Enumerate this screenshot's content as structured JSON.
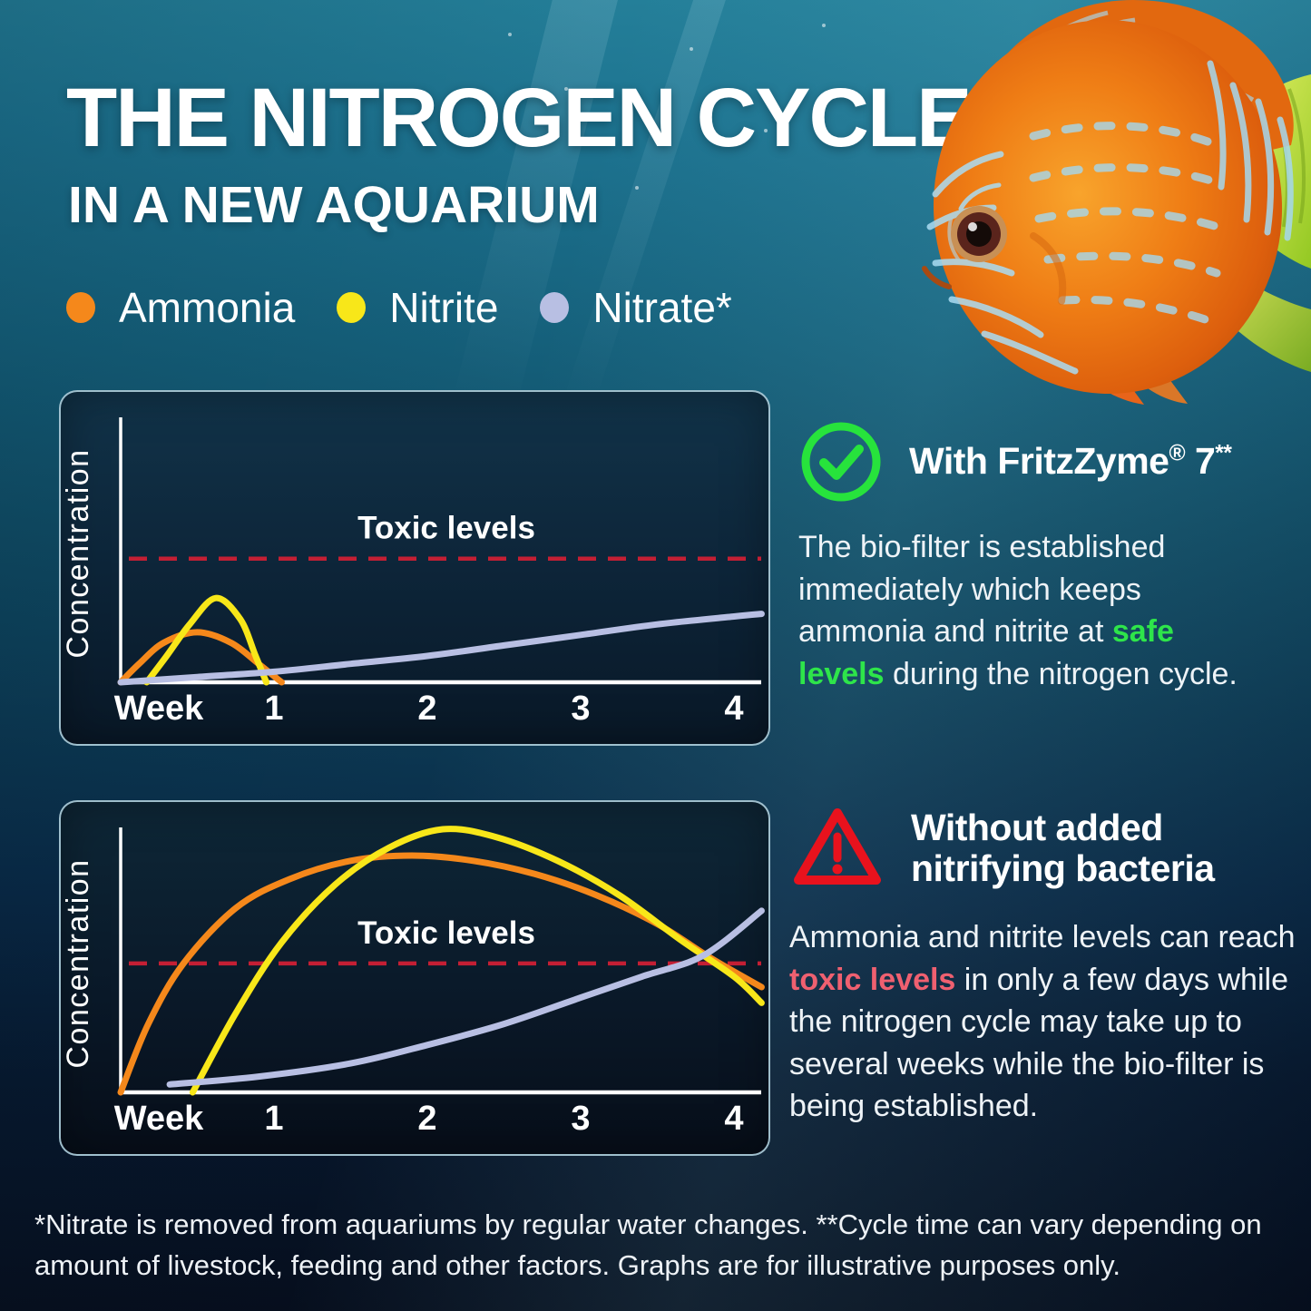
{
  "title": {
    "line1": "THE NITROGEN CYCLE",
    "line2": "IN A NEW AQUARIUM"
  },
  "legend": {
    "items": [
      {
        "label": "Ammonia",
        "color": "#f5881b"
      },
      {
        "label": "Nitrite",
        "color": "#f8e719"
      },
      {
        "label": "Nitrate*",
        "color": "#b8bfe3"
      }
    ]
  },
  "info_with": {
    "icon": "check-circle-icon",
    "icon_color": "#27e33c",
    "heading_main": "With FritzZyme",
    "heading_reg": "®",
    "heading_mid": " 7",
    "heading_sup": "**",
    "body_before": "The bio-filter is established immediately which keeps ammonia and nitrite at ",
    "body_highlight": "safe levels",
    "body_highlight_color": "#2ee54a",
    "body_after": " during the nitrogen cycle."
  },
  "info_without": {
    "icon": "warning-triangle-icon",
    "icon_color": "#e8121d",
    "heading": "Without added nitrifying bacteria",
    "body_before": "Ammonia and nitrite levels can reach ",
    "body_highlight": "toxic levels",
    "body_highlight_color": "#ef6070",
    "body_after": " in only a few days while the nitrogen cycle may take up to several weeks while the bio-filter is being established."
  },
  "footer": {
    "line1": "*Nitrate is removed from aquariums by regular water changes. **Cycle time can vary depending on",
    "line2": "amount of livestock, feeding and other factors. Graphs are for illustrative purposes only."
  },
  "chart_data": [
    {
      "type": "line",
      "title": "",
      "xlabel": "Week",
      "ylabel": "Concentration",
      "x_ticks": [
        1,
        2,
        3,
        4
      ],
      "x_range": [
        0,
        4.2
      ],
      "y_range": [
        0,
        100
      ],
      "grid": false,
      "legend_position": "top-of-page-shared",
      "toxic_level": {
        "label": "Toxic levels",
        "value": 47,
        "color": "#c41f34",
        "style": "dashed"
      },
      "series": [
        {
          "name": "Ammonia",
          "color": "#f5881b",
          "points": [
            [
              0,
              0
            ],
            [
              0.12,
              7
            ],
            [
              0.28,
              15
            ],
            [
              0.5,
              19
            ],
            [
              0.72,
              15
            ],
            [
              0.9,
              7
            ],
            [
              1.05,
              0
            ]
          ]
        },
        {
          "name": "Nitrite",
          "color": "#f8e719",
          "points": [
            [
              0.17,
              0
            ],
            [
              0.3,
              10
            ],
            [
              0.45,
              22
            ],
            [
              0.62,
              32
            ],
            [
              0.78,
              24
            ],
            [
              0.88,
              10
            ],
            [
              0.95,
              0
            ]
          ]
        },
        {
          "name": "Nitrate",
          "color": "#b8bfe3",
          "points": [
            [
              0,
              0
            ],
            [
              0.5,
              2
            ],
            [
              1,
              4
            ],
            [
              1.5,
              7
            ],
            [
              2,
              10
            ],
            [
              2.5,
              14
            ],
            [
              3,
              18
            ],
            [
              3.5,
              22
            ],
            [
              4,
              25
            ],
            [
              4.18,
              26
            ]
          ]
        }
      ]
    },
    {
      "type": "line",
      "title": "",
      "xlabel": "Week",
      "ylabel": "Concentration",
      "x_ticks": [
        1,
        2,
        3,
        4
      ],
      "x_range": [
        0,
        4.2
      ],
      "y_range": [
        0,
        100
      ],
      "grid": false,
      "legend_position": "top-of-page-shared",
      "toxic_level": {
        "label": "Toxic levels",
        "value": 49,
        "color": "#c41f34",
        "style": "dashed"
      },
      "series": [
        {
          "name": "Ammonia",
          "color": "#f5881b",
          "points": [
            [
              0,
              0
            ],
            [
              0.18,
              26
            ],
            [
              0.41,
              49
            ],
            [
              0.75,
              70
            ],
            [
              1.1,
              81
            ],
            [
              1.5,
              88
            ],
            [
              1.9,
              90
            ],
            [
              2.3,
              88
            ],
            [
              2.7,
              83
            ],
            [
              3.1,
              75
            ],
            [
              3.5,
              64
            ],
            [
              3.85,
              51
            ],
            [
              4.18,
              40
            ]
          ]
        },
        {
          "name": "Nitrite",
          "color": "#f8e719",
          "points": [
            [
              0.47,
              0
            ],
            [
              0.75,
              30
            ],
            [
              1.05,
              57
            ],
            [
              1.4,
              79
            ],
            [
              1.75,
              93
            ],
            [
              2.1,
              100
            ],
            [
              2.45,
              97
            ],
            [
              2.85,
              88
            ],
            [
              3.25,
              75
            ],
            [
              3.65,
              58
            ],
            [
              4.0,
              44
            ],
            [
              4.18,
              34
            ]
          ]
        },
        {
          "name": "Nitrate",
          "color": "#b8bfe3",
          "points": [
            [
              0.32,
              3
            ],
            [
              0.9,
              6
            ],
            [
              1.5,
              11
            ],
            [
              2.0,
              18
            ],
            [
              2.5,
              26
            ],
            [
              3.0,
              36
            ],
            [
              3.4,
              44
            ],
            [
              3.8,
              52
            ],
            [
              4.18,
              69
            ]
          ]
        }
      ]
    }
  ]
}
